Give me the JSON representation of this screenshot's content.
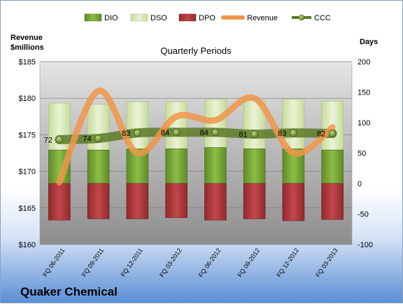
{
  "company": "Quaker Chemical",
  "chart_data": {
    "type": "bar",
    "title": "Quarterly Periods",
    "y_left_label": [
      "Revenue",
      "$millions"
    ],
    "y_right_label": "Days",
    "y_left_lim": [
      160,
      185
    ],
    "y_left_ticks": [
      "$160",
      "$165",
      "$170",
      "$175",
      "$180",
      "$185"
    ],
    "y_right_lim": [
      -100,
      200
    ],
    "y_right_ticks": [
      "-100",
      "-50",
      "0",
      "50",
      "100",
      "150",
      "200"
    ],
    "categories": [
      "FQ 06-2011",
      "FQ 09-2011",
      "FQ 12-2011",
      "FQ 03-2012",
      "FQ 06-2012",
      "FQ 09-2012",
      "FQ 12-2012",
      "FQ 03-2013"
    ],
    "legend": [
      "DIO",
      "DSO",
      "DPO",
      "Revenue",
      "CCC"
    ],
    "legend_position": "top",
    "grid": true,
    "series": [
      {
        "name": "DIO",
        "axis": "right",
        "values": [
          55,
          55,
          57,
          57,
          59,
          57,
          57,
          55
        ],
        "color": "#77a838"
      },
      {
        "name": "DSO",
        "axis": "right",
        "values": [
          77,
          75,
          77,
          77,
          79,
          79,
          81,
          80
        ],
        "color": "#d5e6b2"
      },
      {
        "name": "DPO",
        "axis": "right",
        "values": [
          -60,
          -58,
          -58,
          -56,
          -60,
          -58,
          -61,
          -59
        ],
        "color": "#b03b3f"
      },
      {
        "name": "Revenue",
        "axis": "left",
        "values": [
          168.5,
          181,
          172.5,
          177.5,
          177,
          180,
          172.5,
          176
        ],
        "color": "#f0954a"
      },
      {
        "name": "CCC",
        "axis": "right",
        "values": [
          72,
          74,
          83,
          84,
          84,
          81,
          83,
          82
        ],
        "labels": [
          "72",
          "74",
          "83",
          "84",
          "84",
          "81",
          "83",
          "82"
        ],
        "color": "#5c7a26"
      }
    ]
  }
}
